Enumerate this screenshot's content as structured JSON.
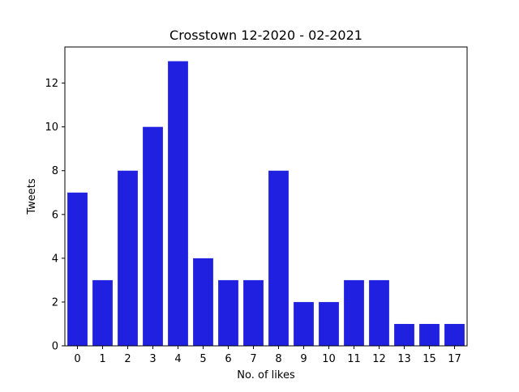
{
  "chart_data": {
    "type": "bar",
    "title": "Crosstown 12-2020 - 02-2021",
    "xlabel": "No. of likes",
    "ylabel": "Tweets",
    "categories": [
      "0",
      "1",
      "2",
      "3",
      "4",
      "5",
      "6",
      "7",
      "8",
      "9",
      "10",
      "11",
      "12",
      "13",
      "15",
      "17"
    ],
    "values": [
      7,
      3,
      8,
      10,
      13,
      4,
      3,
      3,
      8,
      2,
      2,
      3,
      3,
      1,
      1,
      1
    ],
    "ylim": [
      0,
      13.65
    ],
    "yticks": [
      0,
      2,
      4,
      6,
      8,
      10,
      12
    ],
    "bar_color": "#2020e0",
    "grid": false,
    "legend": "none"
  }
}
